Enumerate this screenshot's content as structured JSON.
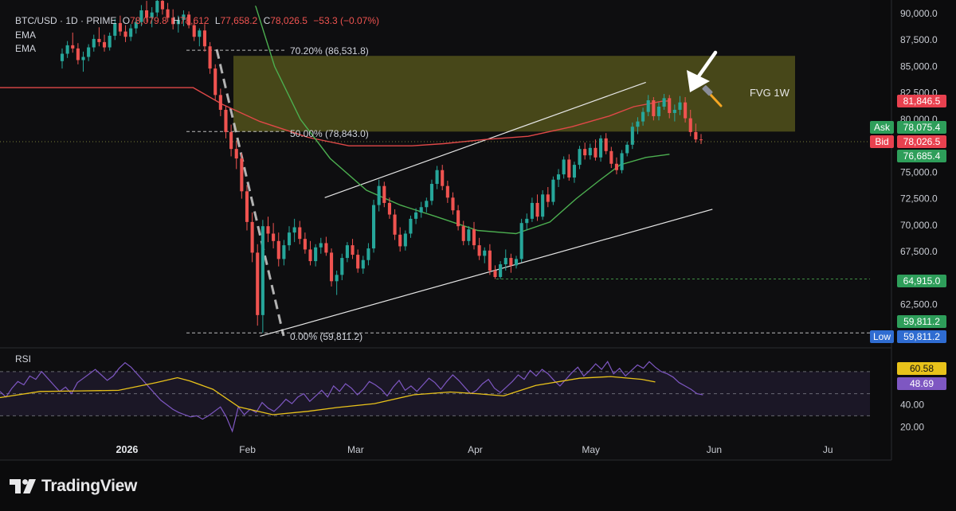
{
  "header": {
    "symbol": "BTC/USD · 1D · PRIME",
    "o_label": "O",
    "o_value": "78,079.8",
    "h_label": "H",
    "h_value": "78,612",
    "l_label": "L",
    "l_value": "77,658.2",
    "c_label": "C",
    "c_value": "78,026.5",
    "change": "−53.3 (−0.07%)",
    "ema1": "EMA",
    "ema2": "EMA"
  },
  "annotations": {
    "fib_top": "70.20% (86,531.8)",
    "fib_mid": "50.00% (78,843.0)",
    "fib_low": "0.00% (59,811.2)",
    "fvg": "FVG 1W"
  },
  "price_tags": {
    "ema_red": "81,846.5",
    "ask_label": "Ask",
    "ask": "78,075.4",
    "bid_label": "Bid",
    "bid": "78,026.5",
    "ema_green": "76,685.4",
    "support": "64,915.0",
    "low_ema": "59,811.2",
    "low_label": "Low",
    "low": "59,811.2",
    "rsi_ma": "60.58",
    "rsi": "48.69"
  },
  "rsi_panel": {
    "label": "RSI"
  },
  "brand": {
    "name": "TradingView"
  },
  "colors": {
    "up": "#26a69a",
    "down": "#ef5350",
    "ema_slow": "#e04848",
    "ema_fast": "#4caf50",
    "fvg": "#6b6a1f",
    "rsi": "#7e57c2",
    "rsi_ma": "#e8c21a",
    "background": "#0b0b0c"
  },
  "chart_data": {
    "type": "candlestick",
    "title": "BTC/USD · 1D · PRIME",
    "xlabel": "",
    "ylabel": "",
    "ylim": [
      56000,
      90500
    ],
    "y_ticks": [
      "90,000.0",
      "87,500.0",
      "85,000.0",
      "82,500.0",
      "80,000.0",
      "75,000.0",
      "72,500.0",
      "70,000.0",
      "67,500.0",
      "62,500.0"
    ],
    "x_ticks": [
      {
        "label": "2026",
        "bold": true,
        "pos": 0.1425
      },
      {
        "label": "Feb",
        "bold": false,
        "pos": 0.2776
      },
      {
        "label": "Mar",
        "bold": false,
        "pos": 0.3989
      },
      {
        "label": "Apr",
        "bold": false,
        "pos": 0.533
      },
      {
        "label": "May",
        "bold": false,
        "pos": 0.6628
      },
      {
        "label": "Jun",
        "bold": false,
        "pos": 0.8011
      },
      {
        "label": "Ju",
        "bold": false,
        "pos": 0.9287
      }
    ],
    "candles_start": 68000,
    "candles": [
      [
        85500,
        86700,
        84800,
        86200
      ],
      [
        86200,
        87400,
        85800,
        87000
      ],
      [
        87000,
        88200,
        86300,
        86700
      ],
      [
        86700,
        87200,
        85200,
        85600
      ],
      [
        85600,
        86400,
        84500,
        85900
      ],
      [
        85900,
        87100,
        85500,
        86800
      ],
      [
        86800,
        88000,
        86400,
        87600
      ],
      [
        87600,
        88700,
        86900,
        87300
      ],
      [
        87300,
        88000,
        86400,
        86800
      ],
      [
        86800,
        88200,
        86500,
        87900
      ],
      [
        87900,
        89500,
        87500,
        89100
      ],
      [
        89100,
        89800,
        87900,
        88300
      ],
      [
        88300,
        88900,
        87300,
        87800
      ],
      [
        87800,
        89000,
        87400,
        88600
      ],
      [
        88600,
        89600,
        88100,
        89200
      ],
      [
        89200,
        90800,
        88800,
        90300
      ],
      [
        90300,
        91200,
        89200,
        89600
      ],
      [
        89600,
        90600,
        88700,
        90100
      ],
      [
        90100,
        91700,
        89700,
        91200
      ],
      [
        91200,
        91800,
        89900,
        90400
      ],
      [
        90400,
        91000,
        89200,
        89600
      ],
      [
        89600,
        90400,
        88500,
        89000
      ],
      [
        89000,
        89800,
        88200,
        89400
      ],
      [
        89400,
        90300,
        88800,
        89900
      ],
      [
        89900,
        90200,
        88600,
        88900
      ],
      [
        88900,
        89400,
        87400,
        87800
      ],
      [
        87800,
        88600,
        86900,
        88400
      ],
      [
        88400,
        89000,
        86400,
        86900
      ],
      [
        86900,
        87300,
        84300,
        84800
      ],
      [
        84800,
        85200,
        81800,
        82300
      ],
      [
        82300,
        82900,
        80300,
        80900
      ],
      [
        80900,
        81300,
        78200,
        78800
      ],
      [
        78800,
        79500,
        76500,
        77200
      ],
      [
        77200,
        78000,
        75300,
        76300
      ],
      [
        76300,
        76800,
        72500,
        73200
      ],
      [
        73200,
        73800,
        69500,
        70300
      ],
      [
        70300,
        71200,
        66500,
        67400
      ],
      [
        67400,
        68200,
        60500,
        61500
      ],
      [
        61500,
        70500,
        59811,
        69900
      ],
      [
        69900,
        70800,
        68400,
        69200
      ],
      [
        69200,
        70200,
        67800,
        68500
      ],
      [
        68500,
        69300,
        66100,
        66800
      ],
      [
        66800,
        68600,
        66200,
        68100
      ],
      [
        68100,
        69900,
        67600,
        69300
      ],
      [
        69300,
        70600,
        68400,
        69800
      ],
      [
        69800,
        70400,
        68200,
        68700
      ],
      [
        68700,
        69300,
        67300,
        67700
      ],
      [
        67700,
        68500,
        66200,
        66600
      ],
      [
        66600,
        68200,
        66100,
        67900
      ],
      [
        67900,
        68800,
        67300,
        68300
      ],
      [
        68300,
        68900,
        67100,
        67400
      ],
      [
        67400,
        67800,
        64200,
        64700
      ],
      [
        64700,
        65700,
        63400,
        65300
      ],
      [
        65300,
        67300,
        64800,
        66900
      ],
      [
        66900,
        68400,
        66500,
        68100
      ],
      [
        68100,
        68700,
        66800,
        67200
      ],
      [
        67200,
        67700,
        65500,
        65900
      ],
      [
        65900,
        67100,
        65400,
        66700
      ],
      [
        66700,
        68300,
        66200,
        67800
      ],
      [
        67800,
        72400,
        67400,
        71900
      ],
      [
        71900,
        74300,
        71300,
        73700
      ],
      [
        73700,
        74100,
        71700,
        72100
      ],
      [
        72100,
        72600,
        70600,
        71000
      ],
      [
        71000,
        71500,
        68600,
        69100
      ],
      [
        69100,
        69800,
        67500,
        68000
      ],
      [
        68000,
        69500,
        67600,
        69200
      ],
      [
        69200,
        70900,
        68800,
        70600
      ],
      [
        70600,
        71600,
        70100,
        71200
      ],
      [
        71200,
        72200,
        70700,
        71700
      ],
      [
        71700,
        72600,
        71200,
        72300
      ],
      [
        72300,
        74300,
        71900,
        73900
      ],
      [
        73900,
        75600,
        73400,
        75200
      ],
      [
        75200,
        75700,
        73300,
        73700
      ],
      [
        73700,
        74200,
        72100,
        72600
      ],
      [
        72600,
        73100,
        71000,
        71400
      ],
      [
        71400,
        71900,
        69500,
        69900
      ],
      [
        69900,
        70400,
        68100,
        68500
      ],
      [
        68500,
        69900,
        68100,
        69600
      ],
      [
        69600,
        70300,
        67700,
        68100
      ],
      [
        68100,
        68800,
        66700,
        67100
      ],
      [
        67100,
        67900,
        66400,
        67600
      ],
      [
        67600,
        68200,
        65300,
        65700
      ],
      [
        65700,
        66200,
        64915,
        65100
      ],
      [
        65100,
        66600,
        64900,
        66300
      ],
      [
        66300,
        67700,
        65700,
        66900
      ],
      [
        66900,
        67300,
        65500,
        66200
      ],
      [
        66200,
        67100,
        65900,
        66800
      ],
      [
        66800,
        70600,
        66500,
        70200
      ],
      [
        70200,
        71100,
        69500,
        70600
      ],
      [
        70600,
        72600,
        70300,
        72100
      ],
      [
        72100,
        72900,
        70400,
        70800
      ],
      [
        70800,
        73300,
        70500,
        72900
      ],
      [
        72900,
        73600,
        71700,
        72200
      ],
      [
        72200,
        74600,
        71900,
        74300
      ],
      [
        74300,
        75300,
        73600,
        74800
      ],
      [
        74800,
        76500,
        74400,
        76200
      ],
      [
        76200,
        76700,
        74200,
        74500
      ],
      [
        74500,
        76000,
        74000,
        75700
      ],
      [
        75700,
        77500,
        75300,
        77200
      ],
      [
        77200,
        77800,
        76200,
        76600
      ],
      [
        76600,
        77700,
        76200,
        77300
      ],
      [
        77300,
        78100,
        76100,
        76400
      ],
      [
        76400,
        78500,
        76000,
        78200
      ],
      [
        78200,
        78700,
        76700,
        77000
      ],
      [
        77000,
        77400,
        75400,
        75800
      ],
      [
        75800,
        76400,
        74800,
        75200
      ],
      [
        75200,
        77100,
        74900,
        76800
      ],
      [
        76800,
        77900,
        76500,
        77600
      ],
      [
        77600,
        79700,
        77200,
        79300
      ],
      [
        79300,
        80200,
        78600,
        79800
      ],
      [
        79800,
        81100,
        79400,
        80700
      ],
      [
        80700,
        82300,
        80300,
        81800
      ],
      [
        81800,
        82100,
        79900,
        80300
      ],
      [
        80300,
        81600,
        79900,
        81200
      ],
      [
        81200,
        82400,
        80900,
        82000
      ],
      [
        82000,
        82300,
        80100,
        80600
      ],
      [
        80600,
        81400,
        79800,
        80900
      ],
      [
        80900,
        82200,
        80400,
        81600
      ],
      [
        81600,
        82100,
        79700,
        80100
      ],
      [
        80100,
        80900,
        78400,
        78800
      ],
      [
        78800,
        79600,
        77800,
        78100
      ],
      [
        78100,
        78612,
        77658,
        78026
      ]
    ],
    "ema_slow_start": 66000,
    "ema_slow": [
      [
        0.2167,
        83000
      ],
      [
        0.2498,
        81400
      ],
      [
        0.2914,
        79800
      ],
      [
        0.3454,
        78300
      ],
      [
        0.3914,
        77500
      ],
      [
        0.4621,
        77500
      ],
      [
        0.4976,
        77700
      ],
      [
        0.5445,
        78100
      ],
      [
        0.5926,
        78400
      ],
      [
        0.6416,
        79300
      ],
      [
        0.683,
        80300
      ],
      [
        0.711,
        81200
      ],
      [
        0.742,
        81700
      ],
      [
        0.751,
        81750
      ]
    ],
    "ema_fast_start": 28000,
    "ema_fast": [
      [
        0.2868,
        90700
      ],
      [
        0.308,
        85000
      ],
      [
        0.337,
        80000
      ],
      [
        0.3703,
        76300
      ],
      [
        0.4111,
        73300
      ],
      [
        0.4489,
        71900
      ],
      [
        0.4894,
        70800
      ],
      [
        0.5357,
        69500
      ],
      [
        0.5787,
        69200
      ],
      [
        0.6169,
        70300
      ],
      [
        0.6464,
        72500
      ],
      [
        0.672,
        74200
      ],
      [
        0.6956,
        75700
      ],
      [
        0.7245,
        76400
      ],
      [
        0.751,
        76700
      ]
    ],
    "fib_levels": [
      {
        "label": "70.20% (86,531.8)",
        "value": 86531.8
      },
      {
        "label": "50.00% (78,843.0)",
        "value": 78843.0
      },
      {
        "label": "0.00% (59,811.2)",
        "value": 59811.2
      }
    ],
    "fvg_range": [
      78843,
      86000
    ],
    "support_level": 64915.0,
    "channel_upper": [
      [
        0.3643,
        72600
      ],
      [
        0.7245,
        83500
      ]
    ],
    "channel_lower": [
      [
        0.2917,
        59500
      ],
      [
        0.7992,
        71500
      ]
    ],
    "rsi_series": {
      "name": "RSI",
      "values": [
        52,
        47,
        55,
        61,
        58,
        66,
        63,
        70,
        64,
        58,
        52,
        56,
        50,
        60,
        64,
        68,
        72,
        67,
        62,
        66,
        73,
        78,
        74,
        68,
        62,
        56,
        50,
        44,
        40,
        36,
        33,
        31,
        29,
        30,
        27,
        30,
        34,
        38,
        29,
        16,
        38,
        31,
        36,
        33,
        42,
        37,
        34,
        39,
        45,
        41,
        47,
        50,
        43,
        48,
        53,
        47,
        57,
        52,
        59,
        55,
        49,
        54,
        61,
        58,
        54,
        48,
        56,
        62,
        53,
        57,
        52,
        58,
        64,
        60,
        54,
        61,
        67,
        62,
        56,
        50,
        53,
        59,
        63,
        55,
        51,
        56,
        61,
        67,
        63,
        71,
        66,
        72,
        68,
        62,
        57,
        63,
        69,
        74,
        66,
        71,
        77,
        72,
        79,
        68,
        73,
        66,
        71,
        76,
        73,
        79,
        74,
        70,
        68,
        65,
        60,
        57,
        54,
        50,
        49
      ]
    },
    "rsi_ma_series": {
      "name": "RSI MA",
      "values": [
        [
          0.0,
          46.5
        ],
        [
          0.045,
          52.0
        ],
        [
          0.09,
          52.5
        ],
        [
          0.133,
          53.0
        ],
        [
          0.175,
          60.0
        ],
        [
          0.199,
          64.5
        ],
        [
          0.213,
          61.5
        ],
        [
          0.239,
          54.0
        ],
        [
          0.268,
          38.0
        ],
        [
          0.306,
          31.0
        ],
        [
          0.345,
          34.0
        ],
        [
          0.378,
          37.5
        ],
        [
          0.42,
          41.0
        ],
        [
          0.464,
          49.0
        ],
        [
          0.505,
          51.5
        ],
        [
          0.535,
          50.0
        ],
        [
          0.565,
          48.0
        ],
        [
          0.601,
          57.5
        ],
        [
          0.65,
          64.0
        ],
        [
          0.685,
          65.5
        ],
        [
          0.72,
          63.0
        ],
        [
          0.735,
          60.6
        ]
      ]
    },
    "rsi_levels": [
      70,
      50,
      30
    ],
    "rsi_ylim": [
      13,
      85
    ],
    "rsi_ticks": [
      "40.00",
      "20.00"
    ]
  }
}
